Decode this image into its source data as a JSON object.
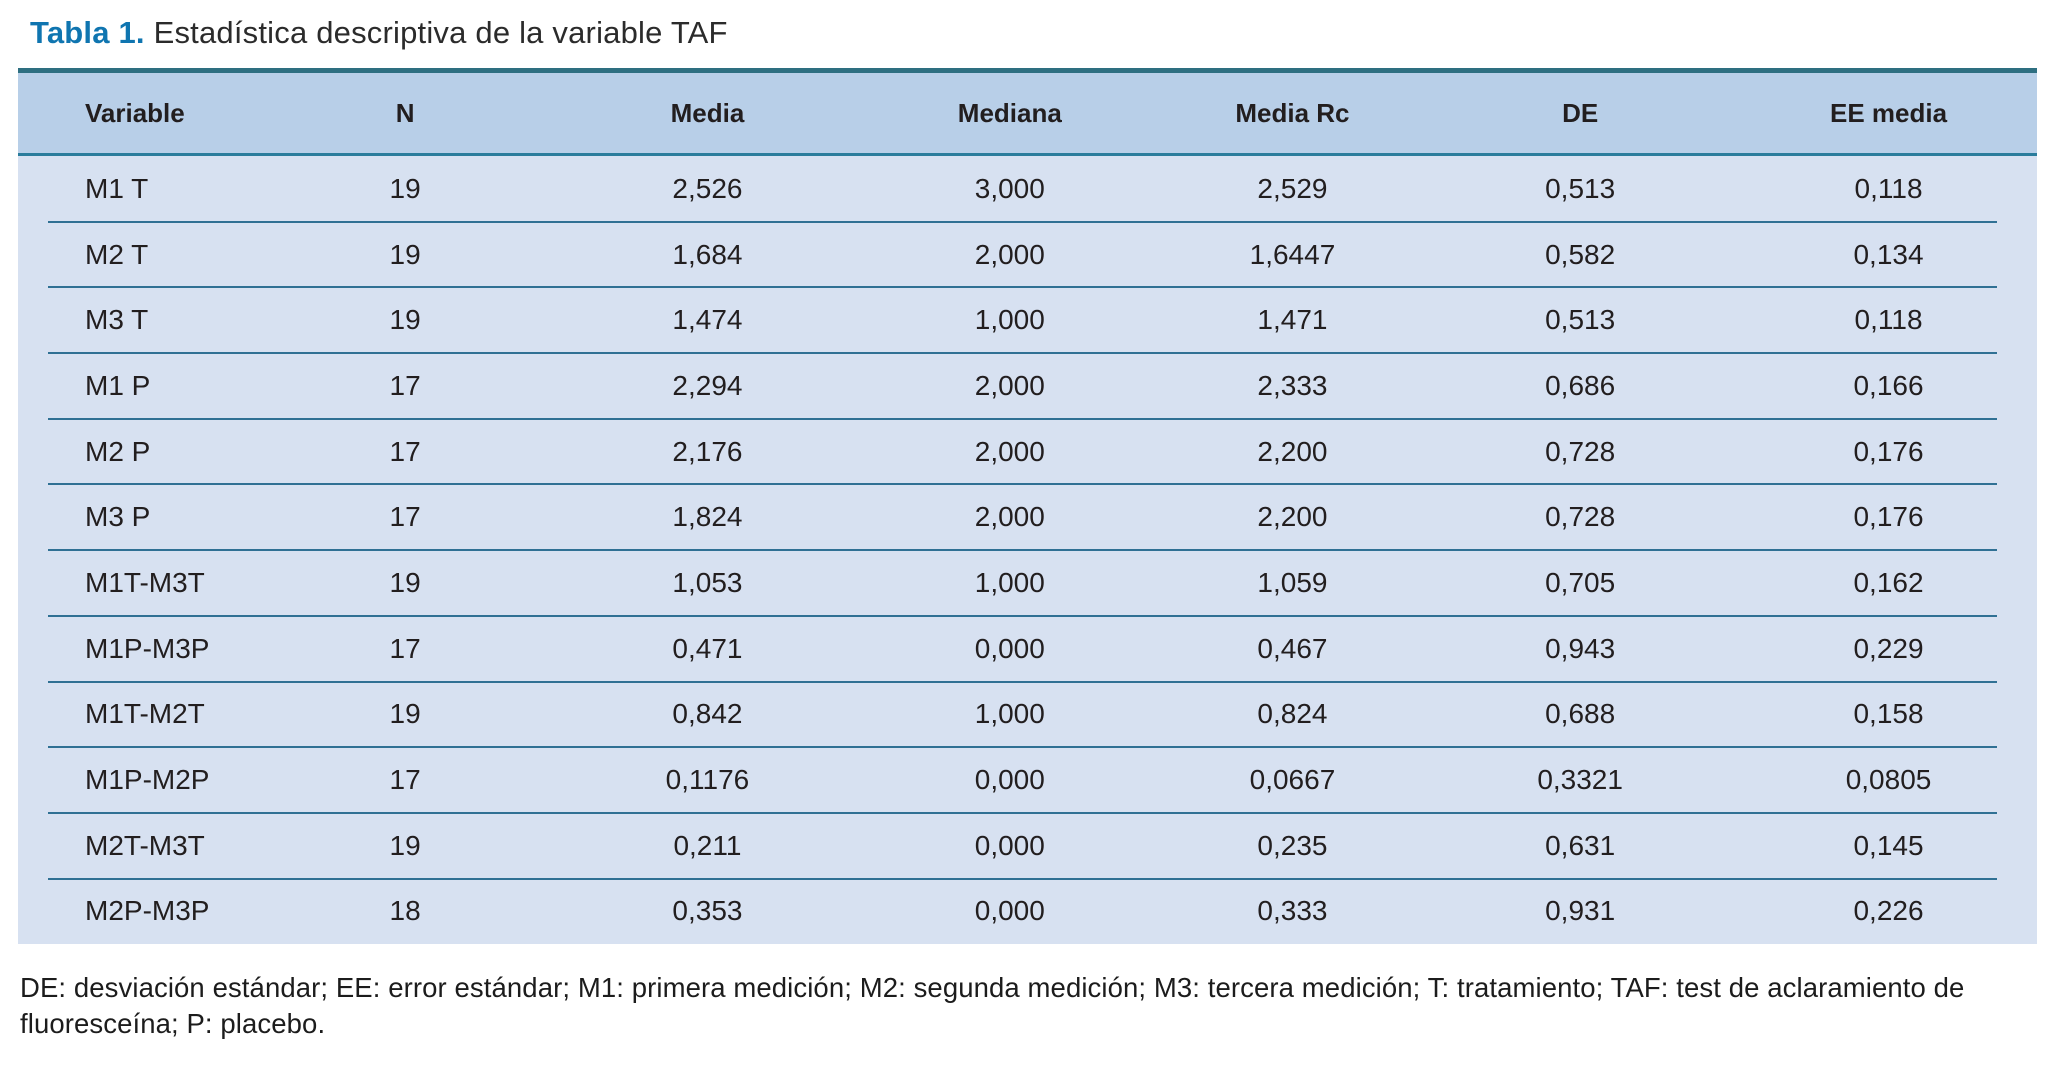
{
  "title": {
    "label": "Tabla 1.",
    "text": "Estadística descriptiva de la variable TAF"
  },
  "table": {
    "columns": [
      "Variable",
      "N",
      "Media",
      "Mediana",
      "Media Rc",
      "DE",
      "EE media"
    ],
    "rows": [
      [
        "M1 T",
        "19",
        "2,526",
        "3,000",
        "2,529",
        "0,513",
        "0,118"
      ],
      [
        "M2 T",
        "19",
        "1,684",
        "2,000",
        "1,6447",
        "0,582",
        "0,134"
      ],
      [
        "M3 T",
        "19",
        "1,474",
        "1,000",
        "1,471",
        "0,513",
        "0,118"
      ],
      [
        "M1 P",
        "17",
        "2,294",
        "2,000",
        "2,333",
        "0,686",
        "0,166"
      ],
      [
        "M2 P",
        "17",
        "2,176",
        "2,000",
        "2,200",
        "0,728",
        "0,176"
      ],
      [
        "M3 P",
        "17",
        "1,824",
        "2,000",
        "2,200",
        "0,728",
        "0,176"
      ],
      [
        "M1T-M3T",
        "19",
        "1,053",
        "1,000",
        "1,059",
        "0,705",
        "0,162"
      ],
      [
        "M1P-M3P",
        "17",
        "0,471",
        "0,000",
        "0,467",
        "0,943",
        "0,229"
      ],
      [
        "M1T-M2T",
        "19",
        "0,842",
        "1,000",
        "0,824",
        "0,688",
        "0,158"
      ],
      [
        "M1P-M2P",
        "17",
        "0,1176",
        "0,000",
        "0,0667",
        "0,3321",
        "0,0805"
      ],
      [
        "M2T-M3T",
        "19",
        "0,211",
        "0,000",
        "0,235",
        "0,631",
        "0,145"
      ],
      [
        "M2P-M3P",
        "18",
        "0,353",
        "0,000",
        "0,333",
        "0,931",
        "0,226"
      ]
    ]
  },
  "footnote": "DE: desviación estándar; EE: error estándar; M1: primera medición; M2: segunda medición; M3: tercera medición; T: tratamiento; TAF: test de aclaramiento de fluoresceína; P: placebo.",
  "colors": {
    "title_accent": "#0f75b0",
    "table_top_border": "#2e6f81",
    "header_background": "#b8cfe8",
    "header_rule": "#2a7c9c",
    "body_background": "#d7e1f1",
    "row_divider": "#2f7094",
    "text": "#221e1f"
  }
}
